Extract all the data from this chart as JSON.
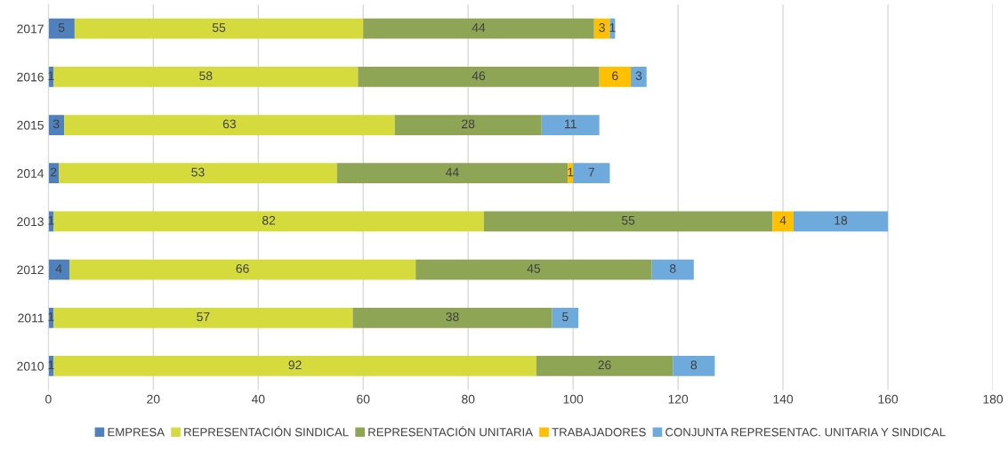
{
  "chart_data": {
    "type": "bar",
    "orientation": "horizontal",
    "stacked": true,
    "categories": [
      "2017",
      "2016",
      "2015",
      "2014",
      "2013",
      "2012",
      "2011",
      "2010"
    ],
    "series": [
      {
        "name": "EMPRESA",
        "color": "#4f81bd",
        "values": [
          5,
          1,
          3,
          2,
          1,
          4,
          1,
          1
        ]
      },
      {
        "name": "REPRESENTACIÓN SINDICAL",
        "color": "#d5db3d",
        "values": [
          55,
          58,
          63,
          53,
          82,
          66,
          57,
          92
        ]
      },
      {
        "name": "REPRESENTACIÓN UNITARIA",
        "color": "#8fa556",
        "values": [
          44,
          46,
          28,
          44,
          55,
          45,
          38,
          26
        ]
      },
      {
        "name": "TRABAJADORES",
        "color": "#ffc000",
        "values": [
          3,
          6,
          null,
          1,
          4,
          null,
          null,
          null
        ]
      },
      {
        "name": "CONJUNTA REPRESENTAC. UNITARIA Y SINDICAL",
        "color": "#6eaadb",
        "values": [
          1,
          3,
          11,
          7,
          18,
          8,
          5,
          8
        ]
      }
    ],
    "xlim": [
      0,
      180
    ],
    "xticks": [
      0,
      20,
      40,
      60,
      80,
      100,
      120,
      140,
      160,
      180
    ],
    "grid": "x",
    "legend": "bottom",
    "data_labels": true
  }
}
